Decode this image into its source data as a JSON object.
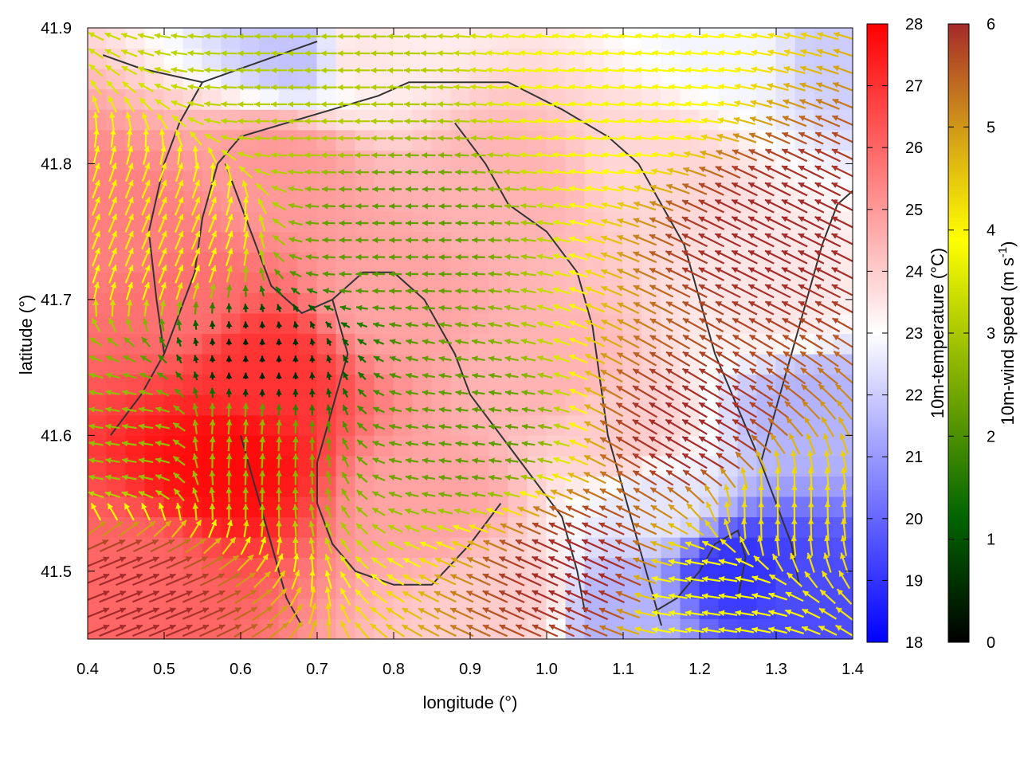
{
  "chart_data": {
    "type": "heatmap",
    "title": "",
    "xlabel": "longitude (°)",
    "ylabel": "latitude (°)",
    "xlim": [
      0.4,
      1.4
    ],
    "ylim": [
      41.45,
      41.9
    ],
    "x_ticks": [
      "0.4",
      "0.5",
      "0.6",
      "0.7",
      "0.8",
      "0.9",
      "1.0",
      "1.1",
      "1.2",
      "1.3",
      "1.4"
    ],
    "y_ticks": [
      "41.5",
      "41.6",
      "41.7",
      "41.8",
      "41.9"
    ],
    "temperature_colorbar": {
      "label": "10m-temperature (°C)",
      "range": [
        18,
        28
      ],
      "ticks": [
        "18",
        "19",
        "20",
        "21",
        "22",
        "23",
        "24",
        "25",
        "26",
        "27",
        "28"
      ],
      "colors": [
        "#0000ff",
        "#ffffff",
        "#ff0000"
      ]
    },
    "wind_colorbar": {
      "label_main": "10m-wind speed (m s",
      "label_sup": "-1",
      "label_end": ")",
      "range": [
        0,
        6
      ],
      "ticks": [
        "0",
        "1",
        "2",
        "3",
        "4",
        "5",
        "6"
      ],
      "colors": [
        "#000000",
        "#006400",
        "#8db600",
        "#ffff00",
        "#d4a017",
        "#a52a2a"
      ]
    },
    "temperature_regions": [
      {
        "lon": 0.45,
        "lat": 41.75,
        "t": 25.5
      },
      {
        "lon": 0.58,
        "lat": 41.58,
        "t": 27.8
      },
      {
        "lon": 0.63,
        "lat": 41.65,
        "t": 27.0
      },
      {
        "lon": 0.52,
        "lat": 41.7,
        "t": 25.8
      },
      {
        "lon": 0.65,
        "lat": 41.8,
        "t": 25.0
      },
      {
        "lon": 0.8,
        "lat": 41.7,
        "t": 24.8
      },
      {
        "lon": 0.85,
        "lat": 41.55,
        "t": 24.8
      },
      {
        "lon": 0.95,
        "lat": 41.78,
        "t": 24.5
      },
      {
        "lon": 1.0,
        "lat": 41.65,
        "t": 24.5
      },
      {
        "lon": 1.15,
        "lat": 41.8,
        "t": 23.8
      },
      {
        "lon": 0.75,
        "lat": 41.88,
        "t": 23.5
      },
      {
        "lon": 0.68,
        "lat": 41.88,
        "t": 21.8
      },
      {
        "lon": 1.25,
        "lat": 41.88,
        "t": 22.8
      },
      {
        "lon": 1.38,
        "lat": 41.88,
        "t": 22.0
      },
      {
        "lon": 1.1,
        "lat": 41.6,
        "t": 24.0
      },
      {
        "lon": 1.15,
        "lat": 41.55,
        "t": 22.5
      },
      {
        "lon": 1.3,
        "lat": 41.7,
        "t": 23.5
      },
      {
        "lon": 1.35,
        "lat": 41.62,
        "t": 21.5
      },
      {
        "lon": 1.25,
        "lat": 41.5,
        "t": 19.0
      },
      {
        "lon": 1.35,
        "lat": 41.48,
        "t": 19.5
      },
      {
        "lon": 1.1,
        "lat": 41.47,
        "t": 21.5
      },
      {
        "lon": 0.45,
        "lat": 41.5,
        "t": 26.0
      },
      {
        "lon": 0.95,
        "lat": 41.48,
        "t": 24.0
      }
    ],
    "wind_vectors_note_free": true,
    "wind_regions": [
      {
        "lon": 0.6,
        "lat": 41.6,
        "u": 0.1,
        "v": 1.5,
        "s": 2.5
      },
      {
        "lon": 0.62,
        "lat": 41.65,
        "u": 0.0,
        "v": 0.3,
        "s": 0.4
      },
      {
        "lon": 0.5,
        "lat": 41.75,
        "u": 0.5,
        "v": 1.2,
        "s": 3.8
      },
      {
        "lon": 0.8,
        "lat": 41.75,
        "u": -1.8,
        "v": 0.0,
        "s": 2.0
      },
      {
        "lon": 0.7,
        "lat": 41.85,
        "u": -2.0,
        "v": 0.0,
        "s": 2.8
      },
      {
        "lon": 1.1,
        "lat": 41.85,
        "u": -2.0,
        "v": 0.2,
        "s": 3.5
      },
      {
        "lon": 1.2,
        "lat": 41.6,
        "u": -2.4,
        "v": 1.4,
        "s": 6.0
      },
      {
        "lon": 1.05,
        "lat": 41.5,
        "u": -2.6,
        "v": 1.2,
        "s": 6.0
      },
      {
        "lon": 1.3,
        "lat": 41.75,
        "u": -2.4,
        "v": 1.2,
        "s": 6.0
      },
      {
        "lon": 1.3,
        "lat": 41.55,
        "u": 0.0,
        "v": 1.6,
        "s": 4.0
      },
      {
        "lon": 1.2,
        "lat": 41.48,
        "u": -2.0,
        "v": 0.3,
        "s": 3.5
      },
      {
        "lon": 0.45,
        "lat": 41.48,
        "u": 2.0,
        "v": 0.8,
        "s": 6.0
      },
      {
        "lon": 0.45,
        "lat": 41.6,
        "u": -1.8,
        "v": 0.3,
        "s": 2.5
      },
      {
        "lon": 0.9,
        "lat": 41.6,
        "u": -1.5,
        "v": 0.2,
        "s": 2.0
      }
    ],
    "contour_lines": [
      [
        [
          0.43,
          41.6
        ],
        [
          0.47,
          41.63
        ],
        [
          0.5,
          41.66
        ],
        [
          0.52,
          41.69
        ],
        [
          0.54,
          41.72
        ],
        [
          0.55,
          41.76
        ],
        [
          0.57,
          41.8
        ],
        [
          0.6,
          41.82
        ],
        [
          0.66,
          41.83
        ],
        [
          0.72,
          41.84
        ],
        [
          0.78,
          41.85
        ],
        [
          0.82,
          41.86
        ],
        [
          0.88,
          41.86
        ],
        [
          0.95,
          41.86
        ],
        [
          1.02,
          41.84
        ],
        [
          1.08,
          41.82
        ],
        [
          1.12,
          41.8
        ],
        [
          1.15,
          41.77
        ],
        [
          1.18,
          41.74
        ]
      ],
      [
        [
          0.5,
          41.66
        ],
        [
          0.49,
          41.7
        ],
        [
          0.48,
          41.75
        ],
        [
          0.5,
          41.8
        ],
        [
          0.52,
          41.83
        ],
        [
          0.55,
          41.86
        ]
      ],
      [
        [
          0.42,
          41.88
        ],
        [
          0.47,
          41.87
        ],
        [
          0.55,
          41.86
        ],
        [
          0.6,
          41.87
        ],
        [
          0.65,
          41.88
        ],
        [
          0.7,
          41.89
        ]
      ],
      [
        [
          0.58,
          41.8
        ],
        [
          0.6,
          41.77
        ],
        [
          0.62,
          41.74
        ],
        [
          0.64,
          41.71
        ],
        [
          0.68,
          41.69
        ],
        [
          0.72,
          41.7
        ],
        [
          0.76,
          41.72
        ],
        [
          0.8,
          41.72
        ],
        [
          0.84,
          41.7
        ],
        [
          0.88,
          41.66
        ],
        [
          0.9,
          41.63
        ],
        [
          0.94,
          41.6
        ],
        [
          0.98,
          41.57
        ],
        [
          1.02,
          41.54
        ],
        [
          1.04,
          41.5
        ],
        [
          1.05,
          41.47
        ]
      ],
      [
        [
          0.72,
          41.7
        ],
        [
          0.74,
          41.66
        ],
        [
          0.72,
          41.62
        ],
        [
          0.7,
          41.58
        ],
        [
          0.7,
          41.55
        ],
        [
          0.72,
          41.52
        ],
        [
          0.75,
          41.5
        ],
        [
          0.8,
          41.49
        ],
        [
          0.85,
          41.49
        ],
        [
          0.9,
          41.52
        ],
        [
          0.94,
          41.55
        ]
      ],
      [
        [
          0.6,
          41.6
        ],
        [
          0.62,
          41.56
        ],
        [
          0.64,
          41.52
        ],
        [
          0.66,
          41.48
        ],
        [
          0.68,
          41.46
        ]
      ],
      [
        [
          0.88,
          41.83
        ],
        [
          0.92,
          41.8
        ],
        [
          0.95,
          41.77
        ],
        [
          1.0,
          41.75
        ],
        [
          1.04,
          41.72
        ],
        [
          1.06,
          41.68
        ],
        [
          1.07,
          41.64
        ],
        [
          1.08,
          41.6
        ],
        [
          1.1,
          41.56
        ],
        [
          1.12,
          41.52
        ],
        [
          1.14,
          41.48
        ],
        [
          1.15,
          41.46
        ]
      ],
      [
        [
          1.18,
          41.74
        ],
        [
          1.2,
          41.7
        ],
        [
          1.22,
          41.66
        ],
        [
          1.25,
          41.62
        ],
        [
          1.28,
          41.58
        ],
        [
          1.3,
          41.55
        ],
        [
          1.32,
          41.52
        ],
        [
          1.33,
          41.49
        ]
      ],
      [
        [
          1.28,
          41.58
        ],
        [
          1.3,
          41.62
        ],
        [
          1.32,
          41.66
        ],
        [
          1.34,
          41.7
        ],
        [
          1.36,
          41.74
        ],
        [
          1.38,
          41.77
        ],
        [
          1.4,
          41.78
        ]
      ],
      [
        [
          1.25,
          41.48
        ],
        [
          1.26,
          41.51
        ],
        [
          1.25,
          41.53
        ],
        [
          1.22,
          41.52
        ],
        [
          1.2,
          41.5
        ],
        [
          1.17,
          41.48
        ],
        [
          1.14,
          41.47
        ]
      ]
    ]
  }
}
